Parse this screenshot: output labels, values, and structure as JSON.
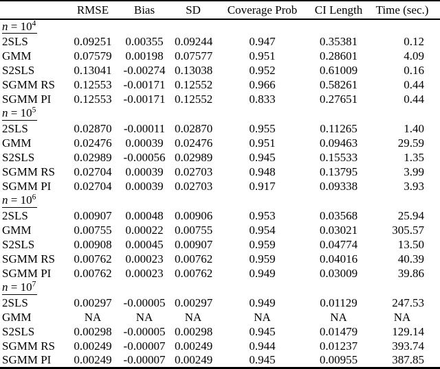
{
  "page": {
    "background": "#ffffff",
    "text_color": "#000000",
    "rule_color": "#000000"
  },
  "table": {
    "headers": [
      "",
      "RMSE",
      "Bias",
      "SD",
      "Coverage Prob",
      "CI Length",
      "Time (sec.)"
    ],
    "na_text": "NA",
    "sections": [
      {
        "label": {
          "var": "n",
          "eq": " = 10",
          "exp": "4"
        },
        "rows": [
          {
            "method": "2SLS",
            "values": [
              "0.09251",
              "0.00355",
              "0.09244",
              "0.947",
              "0.35381",
              "0.12"
            ]
          },
          {
            "method": "GMM",
            "values": [
              "0.07579",
              "0.00198",
              "0.07577",
              "0.951",
              "0.28601",
              "4.09"
            ]
          },
          {
            "method": "S2SLS",
            "values": [
              "0.13041",
              "-0.00274",
              "0.13038",
              "0.952",
              "0.61009",
              "0.16"
            ]
          },
          {
            "method": "SGMM RS",
            "values": [
              "0.12553",
              "-0.00171",
              "0.12552",
              "0.966",
              "0.58261",
              "0.44"
            ]
          },
          {
            "method": "SGMM PI",
            "values": [
              "0.12553",
              "-0.00171",
              "0.12552",
              "0.833",
              "0.27651",
              "0.44"
            ]
          }
        ]
      },
      {
        "label": {
          "var": "n",
          "eq": " = 10",
          "exp": "5"
        },
        "rows": [
          {
            "method": "2SLS",
            "values": [
              "0.02870",
              "-0.00011",
              "0.02870",
              "0.955",
              "0.11265",
              "1.40"
            ]
          },
          {
            "method": "GMM",
            "values": [
              "0.02476",
              "0.00039",
              "0.02476",
              "0.951",
              "0.09463",
              "29.59"
            ]
          },
          {
            "method": "S2SLS",
            "values": [
              "0.02989",
              "-0.00056",
              "0.02989",
              "0.945",
              "0.15533",
              "1.35"
            ]
          },
          {
            "method": "SGMM RS",
            "values": [
              "0.02704",
              "0.00039",
              "0.02703",
              "0.948",
              "0.13795",
              "3.99"
            ]
          },
          {
            "method": "SGMM PI",
            "values": [
              "0.02704",
              "0.00039",
              "0.02703",
              "0.917",
              "0.09338",
              "3.93"
            ]
          }
        ]
      },
      {
        "label": {
          "var": "n",
          "eq": " = 10",
          "exp": "6"
        },
        "rows": [
          {
            "method": "2SLS",
            "values": [
              "0.00907",
              "0.00048",
              "0.00906",
              "0.953",
              "0.03568",
              "25.94"
            ]
          },
          {
            "method": "GMM",
            "values": [
              "0.00755",
              "0.00022",
              "0.00755",
              "0.954",
              "0.03021",
              "305.57"
            ]
          },
          {
            "method": "S2SLS",
            "values": [
              "0.00908",
              "0.00045",
              "0.00907",
              "0.959",
              "0.04774",
              "13.50"
            ]
          },
          {
            "method": "SGMM RS",
            "values": [
              "0.00762",
              "0.00023",
              "0.00762",
              "0.959",
              "0.04016",
              "40.39"
            ]
          },
          {
            "method": "SGMM PI",
            "values": [
              "0.00762",
              "0.00023",
              "0.00762",
              "0.949",
              "0.03009",
              "39.86"
            ]
          }
        ]
      },
      {
        "label": {
          "var": "n",
          "eq": " = 10",
          "exp": "7"
        },
        "rows": [
          {
            "method": "2SLS",
            "values": [
              "0.00297",
              "-0.00005",
              "0.00297",
              "0.949",
              "0.01129",
              "247.53"
            ]
          },
          {
            "method": "GMM",
            "values": [
              "NA",
              "NA",
              "NA",
              "NA",
              "NA",
              "NA"
            ]
          },
          {
            "method": "S2SLS",
            "values": [
              "0.00298",
              "-0.00005",
              "0.00298",
              "0.945",
              "0.01479",
              "129.14"
            ]
          },
          {
            "method": "SGMM RS",
            "values": [
              "0.00249",
              "-0.00007",
              "0.00249",
              "0.944",
              "0.01237",
              "393.74"
            ]
          },
          {
            "method": "SGMM PI",
            "values": [
              "0.00249",
              "-0.00007",
              "0.00249",
              "0.945",
              "0.00955",
              "387.85"
            ]
          }
        ]
      }
    ]
  }
}
